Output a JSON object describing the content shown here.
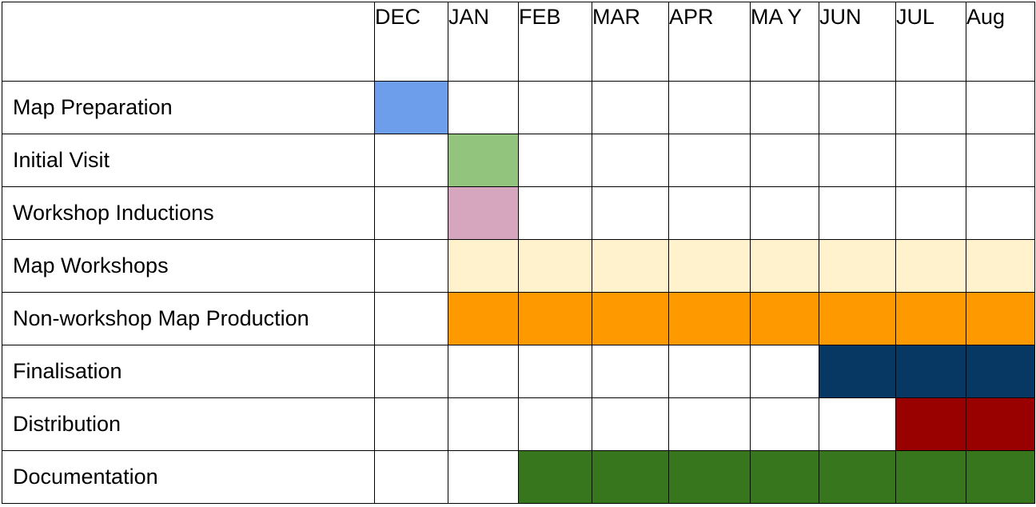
{
  "colors": {
    "blue": "#6d9eeb",
    "green": "#93c47d",
    "pink": "#d5a6bd",
    "cream": "#fff2cc",
    "orange": "#ff9900",
    "navy": "#073763",
    "darkred": "#990000",
    "darkgreen": "#38761d",
    "empty": "#ffffff"
  },
  "table": {
    "corner": "",
    "months": [
      "DEC",
      "JAN",
      "FEB",
      "MAR",
      "APR",
      "MA Y",
      "JUN",
      "JUL",
      "Aug"
    ],
    "rows": [
      {
        "task": "Map Preparation",
        "cells": [
          "blue",
          "empty",
          "empty",
          "empty",
          "empty",
          "empty",
          "empty",
          "empty",
          "empty"
        ]
      },
      {
        "task": "Initial Visit",
        "cells": [
          "empty",
          "green",
          "empty",
          "empty",
          "empty",
          "empty",
          "empty",
          "empty",
          "empty"
        ]
      },
      {
        "task": "Workshop Inductions",
        "cells": [
          "empty",
          "pink",
          "empty",
          "empty",
          "empty",
          "empty",
          "empty",
          "empty",
          "empty"
        ]
      },
      {
        "task": "Map Workshops",
        "cells": [
          "empty",
          "cream",
          "cream",
          "cream",
          "cream",
          "cream",
          "cream",
          "cream",
          "cream"
        ]
      },
      {
        "task": "Non-workshop Map Production",
        "cells": [
          "empty",
          "orange",
          "orange",
          "orange",
          "orange",
          "orange",
          "orange",
          "orange",
          "orange"
        ]
      },
      {
        "task": "Finalisation",
        "cells": [
          "empty",
          "empty",
          "empty",
          "empty",
          "empty",
          "empty",
          "navy",
          "navy",
          "navy"
        ]
      },
      {
        "task": "Distribution",
        "cells": [
          "empty",
          "empty",
          "empty",
          "empty",
          "empty",
          "empty",
          "empty",
          "darkred",
          "darkred"
        ]
      },
      {
        "task": "Documentation",
        "cells": [
          "empty",
          "empty",
          "darkgreen",
          "darkgreen",
          "darkgreen",
          "darkgreen",
          "darkgreen",
          "darkgreen",
          "darkgreen"
        ]
      }
    ]
  }
}
